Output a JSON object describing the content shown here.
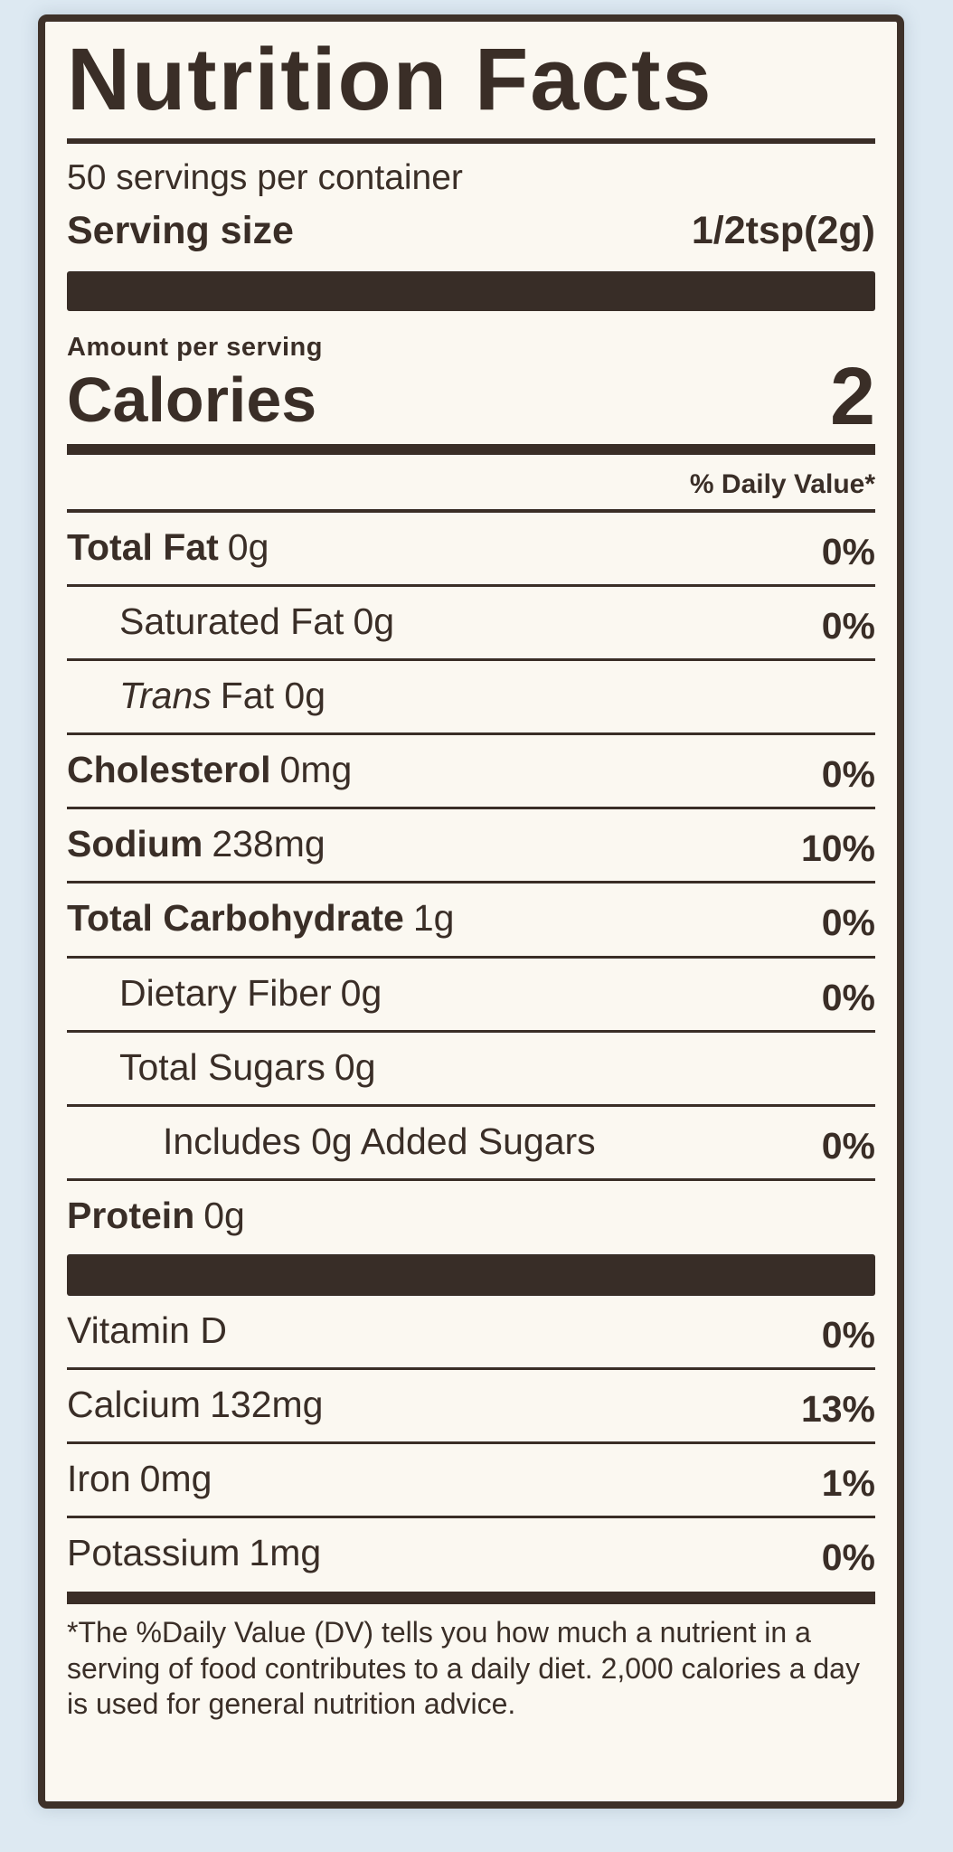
{
  "page": {
    "background_color": "#dde9f2",
    "paper_color": "#fbf8f1",
    "ink_color": "#3a2e27"
  },
  "label": {
    "title": "Nutrition Facts",
    "servings_per_container": "50 servings per container",
    "serving_size_label": "Serving size",
    "serving_size_value": "1/2tsp(2g)",
    "amount_per_serving": "Amount per serving",
    "calories_label": "Calories",
    "calories_value": "2",
    "daily_value_header": "% Daily Value*",
    "nutrients": [
      {
        "name": "Total Fat",
        "amount": "0g",
        "dv": "0%"
      },
      {
        "name": "Saturated Fat",
        "amount": "0g",
        "dv": "0%"
      },
      {
        "name_italic": "Trans",
        "name_rest": "Fat 0g",
        "dv": ""
      },
      {
        "name": "Cholesterol",
        "amount": "0mg",
        "dv": "0%"
      },
      {
        "name": "Sodium",
        "amount": "238mg",
        "dv": "10%"
      },
      {
        "name": "Total Carbohydrate",
        "amount": "1g",
        "dv": "0%"
      },
      {
        "name": "Dietary Fiber",
        "amount": "0g",
        "dv": "0%"
      },
      {
        "name": "Total Sugars",
        "amount": "0g",
        "dv": ""
      },
      {
        "name": "Includes 0g Added Sugars",
        "amount": "",
        "dv": "0%"
      },
      {
        "name": "Protein",
        "amount": "0g",
        "dv": ""
      }
    ],
    "micronutrients": [
      {
        "name": "Vitamin D",
        "amount": "",
        "dv": "0%"
      },
      {
        "name": "Calcium",
        "amount": "132mg",
        "dv": "13%"
      },
      {
        "name": "Iron",
        "amount": "0mg",
        "dv": "1%"
      },
      {
        "name": "Potassium",
        "amount": "1mg",
        "dv": "0%"
      }
    ],
    "footnote": "*The %Daily Value (DV) tells you how much a nutrient in a serving of food contributes to a daily diet. 2,000 calories a day is used for general nutrition advice."
  }
}
